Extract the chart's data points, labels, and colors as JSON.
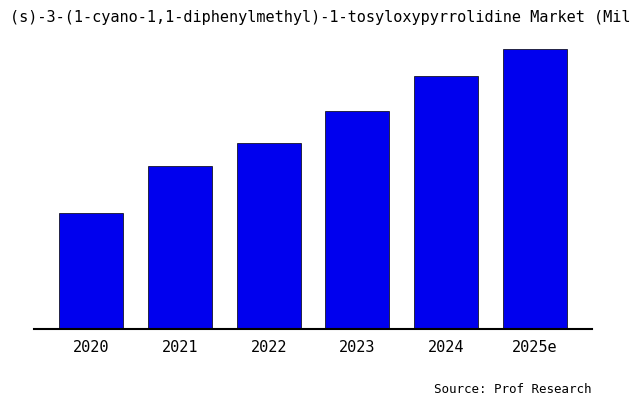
{
  "title": "(s)-3-(1-cyano-1,1-diphenylmethyl)-1-tosyloxypyrrolidine Market (Mil",
  "categories": [
    "2020",
    "2021",
    "2022",
    "2023",
    "2024",
    "2025e"
  ],
  "values": [
    30,
    42,
    48,
    56,
    65,
    72
  ],
  "bar_color": "#0000EE",
  "background_color": "#ffffff",
  "source_text": "Source: Prof Research",
  "title_fontsize": 11,
  "tick_fontsize": 11,
  "source_fontsize": 9,
  "ylim": [
    0,
    75
  ],
  "bar_width": 0.72
}
